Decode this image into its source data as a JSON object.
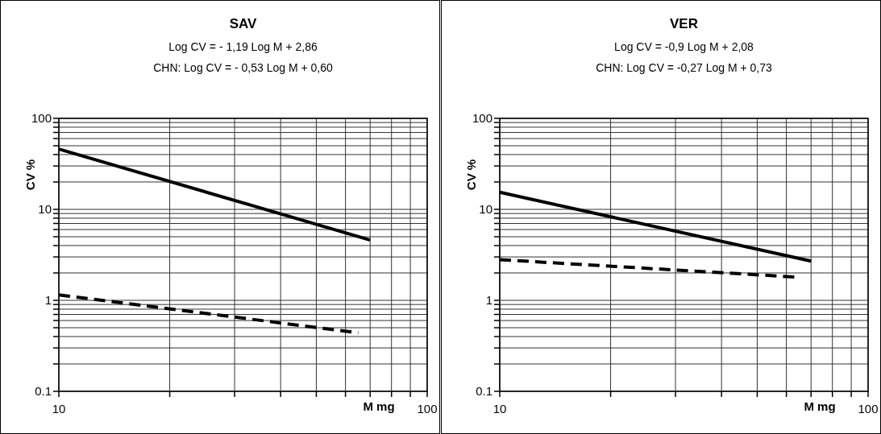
{
  "chart_data": [
    {
      "type": "line",
      "title": "SAV",
      "subtitle": "Log CV = - 1,19 Log M + 2,86\nCHN: Log CV = - 0,53 Log M + 0,60",
      "xlabel": "M mg",
      "ylabel": "CV %",
      "log": "xy",
      "grid": true,
      "xlim": [
        10,
        100
      ],
      "ylim": [
        0.1,
        100
      ],
      "xticks": [
        {
          "value": 10,
          "label": "10"
        },
        {
          "value": 20,
          "label": null
        },
        {
          "value": 30,
          "label": null
        },
        {
          "value": 40,
          "label": null
        },
        {
          "value": 50,
          "label": null
        },
        {
          "value": 60,
          "label": null
        },
        {
          "value": 70,
          "label": null
        },
        {
          "value": 80,
          "label": null
        },
        {
          "value": 90,
          "label": null
        },
        {
          "value": 100,
          "label": "100"
        }
      ],
      "yticks": [
        {
          "value": 0.1,
          "label": "0.1"
        },
        {
          "value": 0.2,
          "label": null
        },
        {
          "value": 0.3,
          "label": null
        },
        {
          "value": 0.4,
          "label": null
        },
        {
          "value": 0.5,
          "label": null
        },
        {
          "value": 0.6,
          "label": null
        },
        {
          "value": 0.7,
          "label": null
        },
        {
          "value": 0.8,
          "label": null
        },
        {
          "value": 0.9,
          "label": null
        },
        {
          "value": 1,
          "label": "1"
        },
        {
          "value": 2,
          "label": null
        },
        {
          "value": 3,
          "label": null
        },
        {
          "value": 4,
          "label": null
        },
        {
          "value": 5,
          "label": null
        },
        {
          "value": 6,
          "label": null
        },
        {
          "value": 7,
          "label": null
        },
        {
          "value": 8,
          "label": null
        },
        {
          "value": 9,
          "label": null
        },
        {
          "value": 10,
          "label": "10"
        },
        {
          "value": 20,
          "label": null
        },
        {
          "value": 30,
          "label": null
        },
        {
          "value": 40,
          "label": null
        },
        {
          "value": 50,
          "label": null
        },
        {
          "value": 60,
          "label": null
        },
        {
          "value": 70,
          "label": null
        },
        {
          "value": 80,
          "label": null
        },
        {
          "value": 90,
          "label": null
        },
        {
          "value": 100,
          "label": "100"
        }
      ],
      "series": [
        {
          "color": "#000000",
          "line_style": "solid",
          "x": [
            10,
            70
          ],
          "values": [
            46,
            4.6
          ]
        },
        {
          "color": "#000000",
          "line_style": "dashed",
          "x": [
            10,
            65
          ],
          "values": [
            1.15,
            0.44
          ]
        }
      ]
    },
    {
      "type": "line",
      "title": "VER",
      "subtitle": "Log CV = -0,9 Log M + 2,08\nCHN: Log CV = -0,27 Log M + 0,73",
      "xlabel": "M mg",
      "ylabel": "CV %",
      "log": "xy",
      "grid": true,
      "xlim": [
        10,
        100
      ],
      "ylim": [
        0.1,
        100
      ],
      "xticks": [
        {
          "value": 10,
          "label": "10"
        },
        {
          "value": 20,
          "label": null
        },
        {
          "value": 30,
          "label": null
        },
        {
          "value": 40,
          "label": null
        },
        {
          "value": 50,
          "label": null
        },
        {
          "value": 60,
          "label": null
        },
        {
          "value": 70,
          "label": null
        },
        {
          "value": 80,
          "label": null
        },
        {
          "value": 90,
          "label": null
        },
        {
          "value": 100,
          "label": "100"
        }
      ],
      "yticks": [
        {
          "value": 0.1,
          "label": "0.1"
        },
        {
          "value": 0.2,
          "label": null
        },
        {
          "value": 0.3,
          "label": null
        },
        {
          "value": 0.4,
          "label": null
        },
        {
          "value": 0.5,
          "label": null
        },
        {
          "value": 0.6,
          "label": null
        },
        {
          "value": 0.7,
          "label": null
        },
        {
          "value": 0.8,
          "label": null
        },
        {
          "value": 0.9,
          "label": null
        },
        {
          "value": 1,
          "label": "1"
        },
        {
          "value": 2,
          "label": null
        },
        {
          "value": 3,
          "label": null
        },
        {
          "value": 4,
          "label": null
        },
        {
          "value": 5,
          "label": null
        },
        {
          "value": 6,
          "label": null
        },
        {
          "value": 7,
          "label": null
        },
        {
          "value": 8,
          "label": null
        },
        {
          "value": 9,
          "label": null
        },
        {
          "value": 10,
          "label": "10"
        },
        {
          "value": 20,
          "label": null
        },
        {
          "value": 30,
          "label": null
        },
        {
          "value": 40,
          "label": null
        },
        {
          "value": 50,
          "label": null
        },
        {
          "value": 60,
          "label": null
        },
        {
          "value": 70,
          "label": null
        },
        {
          "value": 80,
          "label": null
        },
        {
          "value": 90,
          "label": null
        },
        {
          "value": 100,
          "label": "100"
        }
      ],
      "series": [
        {
          "color": "#000000",
          "line_style": "solid",
          "x": [
            10,
            70
          ],
          "values": [
            15.4,
            2.7
          ]
        },
        {
          "color": "#000000",
          "line_style": "dashed",
          "x": [
            10,
            64
          ],
          "values": [
            2.8,
            1.8
          ]
        }
      ]
    }
  ]
}
